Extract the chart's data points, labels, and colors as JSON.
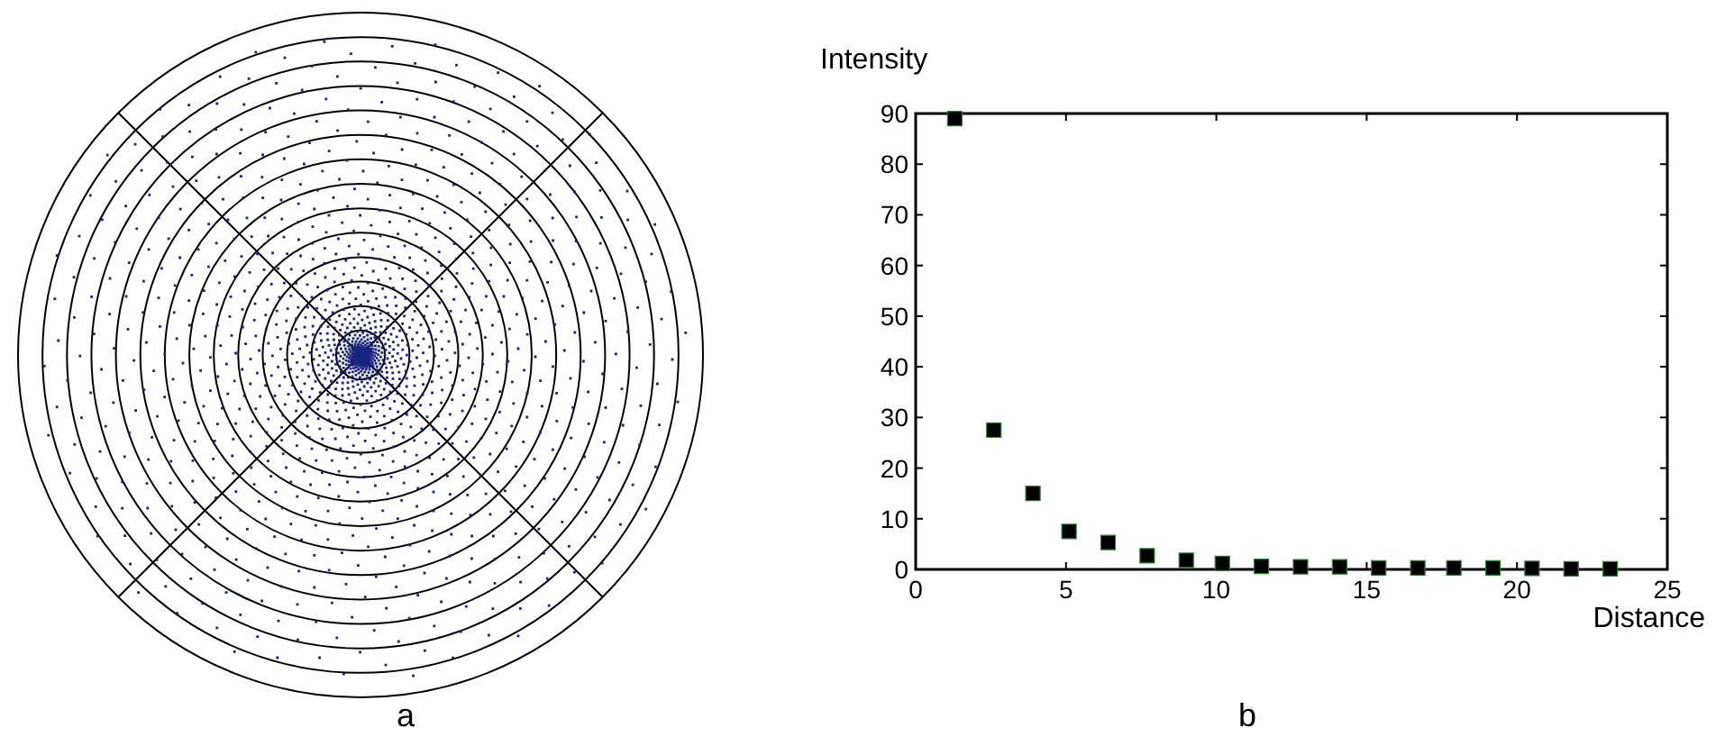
{
  "chart_data": {
    "type": "scatter",
    "xlabel": "Distance",
    "ylabel": "Intensity",
    "marker": "square",
    "grid": false,
    "annotations": [
      "a",
      "b"
    ],
    "xlim": [
      0,
      25
    ],
    "xticks": [
      0,
      5,
      10,
      15,
      20,
      25
    ],
    "ylim": [
      0,
      90
    ],
    "yticks": [
      0,
      10,
      20,
      30,
      40,
      50,
      60,
      70,
      80,
      90
    ],
    "series": [
      {
        "color": "#000000",
        "x": [
          1.3,
          2.6,
          3.9,
          5.1,
          6.4,
          7.7,
          9.0,
          10.2,
          11.5,
          12.8,
          14.1,
          15.4,
          16.7,
          17.9,
          19.2,
          20.5,
          21.8,
          23.1
        ],
        "values": [
          89,
          27.5,
          15,
          7.5,
          5.3,
          2.7,
          1.8,
          1.2,
          0.6,
          0.5,
          0.5,
          0.3,
          0.3,
          0.3,
          0.3,
          0.2,
          0.1,
          0.1
        ]
      }
    ]
  }
}
